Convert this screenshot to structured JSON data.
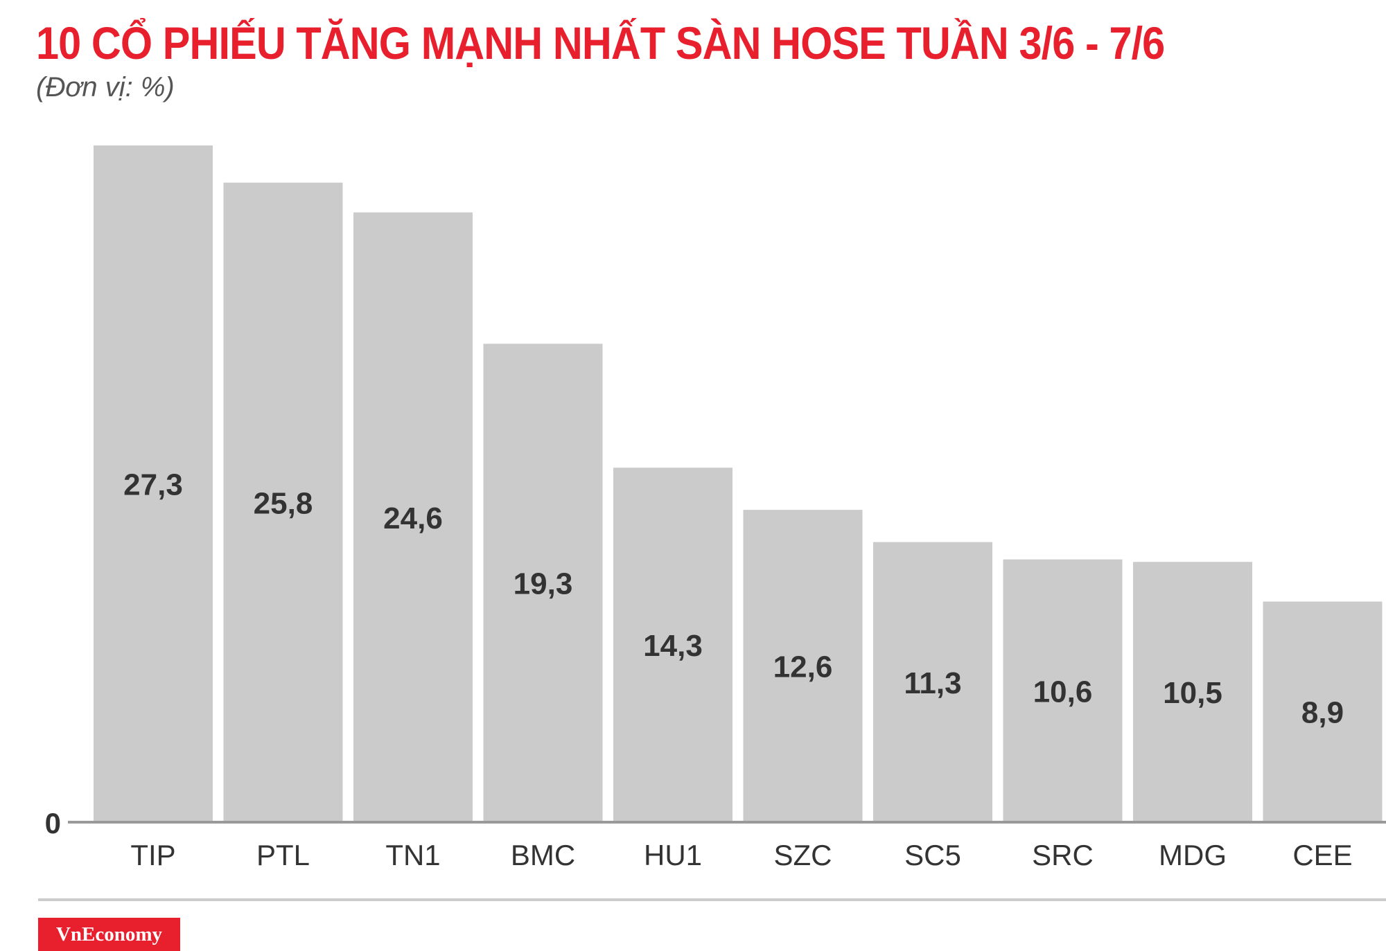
{
  "header": {
    "title": "10 CỔ PHIẾU TĂNG MẠNH NHẤT SÀN HOSE TUẦN 3/6 - 7/6",
    "unit": "(Đơn vị: %)"
  },
  "colors": {
    "title": "#e8202e",
    "bar": "#cccbcc",
    "value_label": "#333333",
    "axis": "#9a9a9a",
    "logo_bg": "#e8202e"
  },
  "chart_data": {
    "type": "bar",
    "title": "10 CỔ PHIẾU TĂNG MẠNH NHẤT SÀN HOSE TUẦN 3/6 - 7/6",
    "subtitle": "(Đơn vị: %)",
    "xlabel": "",
    "ylabel": "",
    "categories": [
      "TIP",
      "PTL",
      "TN1",
      "BMC",
      "HU1",
      "SZC",
      "SC5",
      "SRC",
      "MDG",
      "CEE"
    ],
    "values": [
      27.3,
      25.8,
      24.6,
      19.3,
      14.3,
      12.6,
      11.3,
      10.6,
      10.5,
      8.9
    ],
    "value_labels": [
      "27,3",
      "25,8",
      "24,6",
      "19,3",
      "14,3",
      "12,6",
      "11,3",
      "10,6",
      "10,5",
      "8,9"
    ],
    "y_tick_labels": [
      "0"
    ],
    "ylim": [
      0,
      27.3
    ],
    "grid": false,
    "legend": "none"
  },
  "footer": {
    "logo_text": "VnEconomy"
  }
}
